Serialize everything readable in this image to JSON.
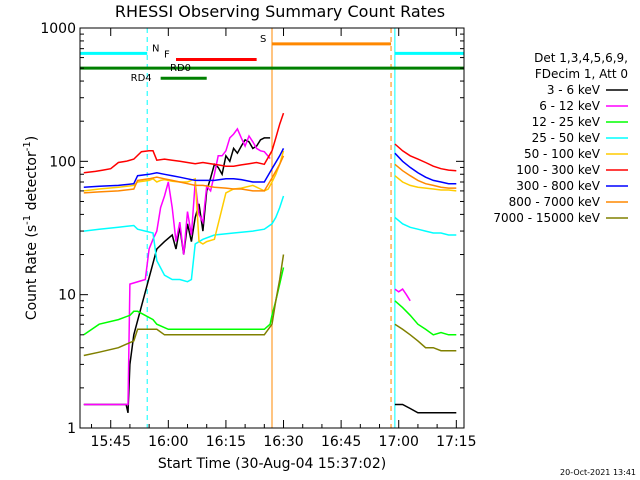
{
  "chart_data": {
    "type": "line",
    "title": "RHESSI Observing Summary Count Rates",
    "xlabel": "Start Time (30-Aug-04 15:37:02)",
    "ylabel_prefix": "Count Rate (s",
    "ylabel_exp": "-1",
    "ylabel_mid": " detector",
    "ylabel_exp2": "-1",
    "ylabel_suffix": ")",
    "y_scale": "log",
    "ylim": [
      1,
      1000
    ],
    "xlim_minutes": [
      0,
      100
    ],
    "x_ticks": [
      {
        "t": 8,
        "label": "15:45"
      },
      {
        "t": 23,
        "label": "16:00"
      },
      {
        "t": 38,
        "label": "16:15"
      },
      {
        "t": 53,
        "label": "16:30"
      },
      {
        "t": 68,
        "label": "16:45"
      },
      {
        "t": 83,
        "label": "17:00"
      },
      {
        "t": 98,
        "label": "17:15"
      }
    ],
    "y_ticks": [
      {
        "v": 1,
        "label": "1"
      },
      {
        "v": 10,
        "label": "10"
      },
      {
        "v": 100,
        "label": "100"
      },
      {
        "v": 1000,
        "label": "1000"
      }
    ],
    "legend": {
      "placement": "right",
      "header1": "Det 1,3,4,5,6,9,",
      "header2": "FDecim 1, Att 0"
    },
    "series": [
      {
        "name": "3 - 6 keV",
        "color": "#000000",
        "x": [
          1,
          12,
          12.5,
          13,
          14,
          20,
          22,
          24,
          25,
          26,
          27,
          28,
          29,
          30,
          31,
          32,
          33,
          34,
          35,
          36,
          37,
          38,
          39,
          40,
          41,
          42,
          43,
          44,
          45,
          46,
          47,
          48,
          49.5
        ],
        "y": [
          1.5,
          1.5,
          1.3,
          3,
          5,
          22,
          25,
          28,
          22,
          32,
          20,
          34,
          25,
          38,
          48,
          30,
          60,
          75,
          95,
          90,
          80,
          110,
          100,
          125,
          115,
          130,
          145,
          140,
          125,
          130,
          145,
          150,
          150
        ]
      },
      {
        "name": "6 - 12 keV",
        "color": "#ff00ff",
        "x": [
          1,
          12.5,
          13,
          17,
          18,
          19,
          20,
          21,
          22,
          23,
          24,
          25,
          26,
          27,
          28,
          29,
          30,
          31,
          32,
          33,
          34,
          35,
          36,
          37,
          38,
          39,
          40,
          41,
          42,
          43,
          44,
          45,
          46,
          47,
          48,
          49.5
        ],
        "y": [
          1.5,
          1.5,
          12,
          13,
          22,
          26,
          30,
          45,
          55,
          70,
          45,
          25,
          35,
          20,
          42,
          28,
          70,
          40,
          35,
          65,
          60,
          80,
          110,
          110,
          120,
          150,
          160,
          175,
          150,
          130,
          155,
          140,
          125,
          120,
          118,
          105
        ]
      },
      {
        "name": "12 - 25 keV",
        "color": "#00ff00",
        "x": [
          1,
          5,
          10,
          13,
          14,
          15,
          19,
          20,
          23,
          28,
          30,
          33,
          35,
          40,
          45,
          48,
          49.5,
          50,
          51,
          52,
          53
        ],
        "y": [
          5,
          6,
          6.5,
          7,
          7.5,
          7.5,
          6.5,
          6,
          5.5,
          5.5,
          5.5,
          5.5,
          5.5,
          5.5,
          5.5,
          5.5,
          6,
          7,
          9,
          12,
          16
        ]
      },
      {
        "name": "25 - 50 keV",
        "color": "#00ffff",
        "x": [
          1,
          5,
          10,
          14,
          15,
          19,
          20,
          22,
          24,
          26,
          28,
          29,
          30,
          32,
          35,
          40,
          45,
          48,
          50,
          51,
          52,
          53
        ],
        "y": [
          30,
          31,
          32,
          33,
          31,
          29,
          18,
          14,
          13,
          13,
          12.5,
          13,
          24,
          26,
          28,
          29,
          30,
          31,
          34,
          38,
          45,
          55
        ]
      },
      {
        "name": "50 - 100 keV",
        "color": "#ffcc00",
        "x": [
          1,
          5,
          10,
          14,
          15,
          18,
          19,
          20,
          21,
          22,
          24,
          26,
          28,
          30,
          31,
          32,
          33,
          35,
          38,
          40,
          42,
          45,
          46,
          47,
          48,
          49,
          50,
          51,
          52,
          53
        ],
        "y": [
          60,
          62,
          64,
          66,
          70,
          72,
          74,
          70,
          72,
          73,
          71,
          70,
          70,
          74,
          25,
          24,
          25,
          26,
          58,
          62,
          63,
          66,
          64,
          62,
          60,
          62,
          70,
          80,
          95,
          120
        ]
      },
      {
        "name": "100 - 300 keV",
        "color": "#ff0000",
        "x": [
          1,
          4,
          6,
          8,
          10,
          12,
          14,
          16,
          18,
          19,
          20,
          22,
          24,
          26,
          28,
          30,
          32,
          34,
          36,
          38,
          40,
          42,
          44,
          46,
          48,
          50,
          51,
          52,
          53
        ],
        "y": [
          82,
          84,
          86,
          88,
          98,
          100,
          104,
          118,
          120,
          120,
          102,
          104,
          102,
          100,
          98,
          96,
          98,
          96,
          94,
          92,
          92,
          94,
          96,
          98,
          95,
          120,
          150,
          190,
          230
        ]
      },
      {
        "name": "300 - 800 keV",
        "color": "#0000ff",
        "x": [
          1,
          5,
          10,
          14,
          15,
          18,
          20,
          22,
          24,
          26,
          28,
          30,
          32,
          35,
          38,
          40,
          42,
          45,
          48,
          50,
          52,
          53
        ],
        "y": [
          64,
          65,
          66,
          68,
          78,
          80,
          82,
          80,
          78,
          76,
          74,
          72,
          72,
          72,
          74,
          74,
          73,
          70,
          70,
          88,
          110,
          125
        ]
      },
      {
        "name": "800 - 7000 keV",
        "color": "#ff8800",
        "x": [
          1,
          5,
          10,
          14,
          15,
          18,
          20,
          22,
          24,
          26,
          28,
          30,
          32,
          35,
          38,
          40,
          42,
          45,
          48,
          50,
          52,
          53
        ],
        "y": [
          58,
          59,
          60,
          62,
          72,
          74,
          76,
          74,
          72,
          70,
          68,
          66,
          66,
          64,
          63,
          62,
          62,
          60,
          60,
          75,
          95,
          110
        ]
      },
      {
        "name": "7000 - 15000 keV",
        "color": "#808000",
        "x": [
          1,
          5,
          10,
          14,
          15,
          19,
          20,
          22,
          25,
          28,
          30,
          35,
          40,
          45,
          48,
          50,
          51,
          52,
          53
        ],
        "y": [
          3.5,
          3.7,
          4,
          4.5,
          5.5,
          5.5,
          5.5,
          5,
          5,
          5,
          5,
          5,
          5,
          5,
          5,
          6,
          9,
          13,
          20
        ]
      }
    ],
    "series_after_gap": [
      {
        "name": "3 - 6 keV",
        "color": "#000000",
        "x": [
          82,
          84,
          86,
          88,
          90,
          92,
          94,
          96,
          98
        ],
        "y": [
          1.5,
          1.5,
          1.4,
          1.3,
          1.3,
          1.3,
          1.3,
          1.3,
          1.3
        ]
      },
      {
        "name": "6 - 12 keV",
        "color": "#ff00ff",
        "x": [
          82,
          83,
          84,
          85,
          86
        ],
        "y": [
          11,
          10.5,
          11,
          10,
          9
        ]
      },
      {
        "name": "12 - 25 keV",
        "color": "#00ff00",
        "x": [
          82,
          84,
          86,
          88,
          90,
          92,
          94,
          96,
          98
        ],
        "y": [
          9,
          8,
          7,
          6,
          5.5,
          5,
          5.2,
          5,
          5
        ]
      },
      {
        "name": "25 - 50 keV",
        "color": "#00ffff",
        "x": [
          82,
          84,
          86,
          88,
          90,
          92,
          94,
          96,
          98
        ],
        "y": [
          38,
          34,
          32,
          31,
          30,
          29,
          29,
          28,
          28
        ]
      },
      {
        "name": "50 - 100 keV",
        "color": "#ffcc00",
        "x": [
          82,
          84,
          86,
          88,
          90,
          92,
          94,
          96,
          98
        ],
        "y": [
          78,
          70,
          66,
          64,
          63,
          62,
          61,
          61,
          60
        ]
      },
      {
        "name": "100 - 300 keV",
        "color": "#ff0000",
        "x": [
          82,
          84,
          86,
          88,
          90,
          92,
          94,
          96,
          98
        ],
        "y": [
          135,
          120,
          110,
          104,
          98,
          92,
          88,
          86,
          85
        ]
      },
      {
        "name": "300 - 800 keV",
        "color": "#0000ff",
        "x": [
          82,
          84,
          86,
          88,
          90,
          92,
          94,
          96,
          98
        ],
        "y": [
          115,
          100,
          90,
          82,
          76,
          72,
          70,
          68,
          68
        ]
      },
      {
        "name": "800 - 7000 keV",
        "color": "#ff8800",
        "x": [
          82,
          84,
          86,
          88,
          90,
          92,
          94,
          96,
          98
        ],
        "y": [
          95,
          85,
          78,
          72,
          68,
          66,
          64,
          63,
          63
        ]
      },
      {
        "name": "7000 - 15000 keV",
        "color": "#808000",
        "x": [
          82,
          84,
          86,
          88,
          90,
          92,
          94,
          96,
          98
        ],
        "y": [
          6,
          5.5,
          5,
          4.5,
          4,
          4,
          3.8,
          3.8,
          3.8
        ]
      }
    ],
    "flag_bars": [
      {
        "label": "N",
        "color": "#00ffff",
        "y": 645,
        "segments": [
          [
            0,
            17.5
          ],
          [
            82,
            100
          ]
        ]
      },
      {
        "label": "S",
        "color": "#ff8800",
        "y": 760,
        "segments": [
          [
            50,
            81
          ]
        ]
      },
      {
        "label": "F",
        "color": "#ff0000",
        "y": 580,
        "segments": [
          [
            25,
            46
          ]
        ]
      },
      {
        "label": "RD0",
        "color": "#008000",
        "y": 500,
        "segments": [
          [
            0,
            100
          ]
        ]
      },
      {
        "label": "RD4",
        "color": "#008000",
        "y": 420,
        "segments": [
          [
            21,
            33
          ]
        ]
      }
    ],
    "vertical_lines": [
      {
        "t": 0,
        "color": "#00ffff",
        "dashed": true
      },
      {
        "t": 17.5,
        "color": "#00ffff",
        "dashed": true
      },
      {
        "t": 50,
        "color": "#ff8800",
        "dashed": false
      },
      {
        "t": 81,
        "color": "#ff8800",
        "dashed": true
      },
      {
        "t": 82,
        "color": "#00ffff",
        "dashed": false
      },
      {
        "t": 100,
        "color": "#00ffff",
        "dashed": true
      }
    ],
    "grid": false
  },
  "footer_date": "20-Oct-2021 13:41"
}
